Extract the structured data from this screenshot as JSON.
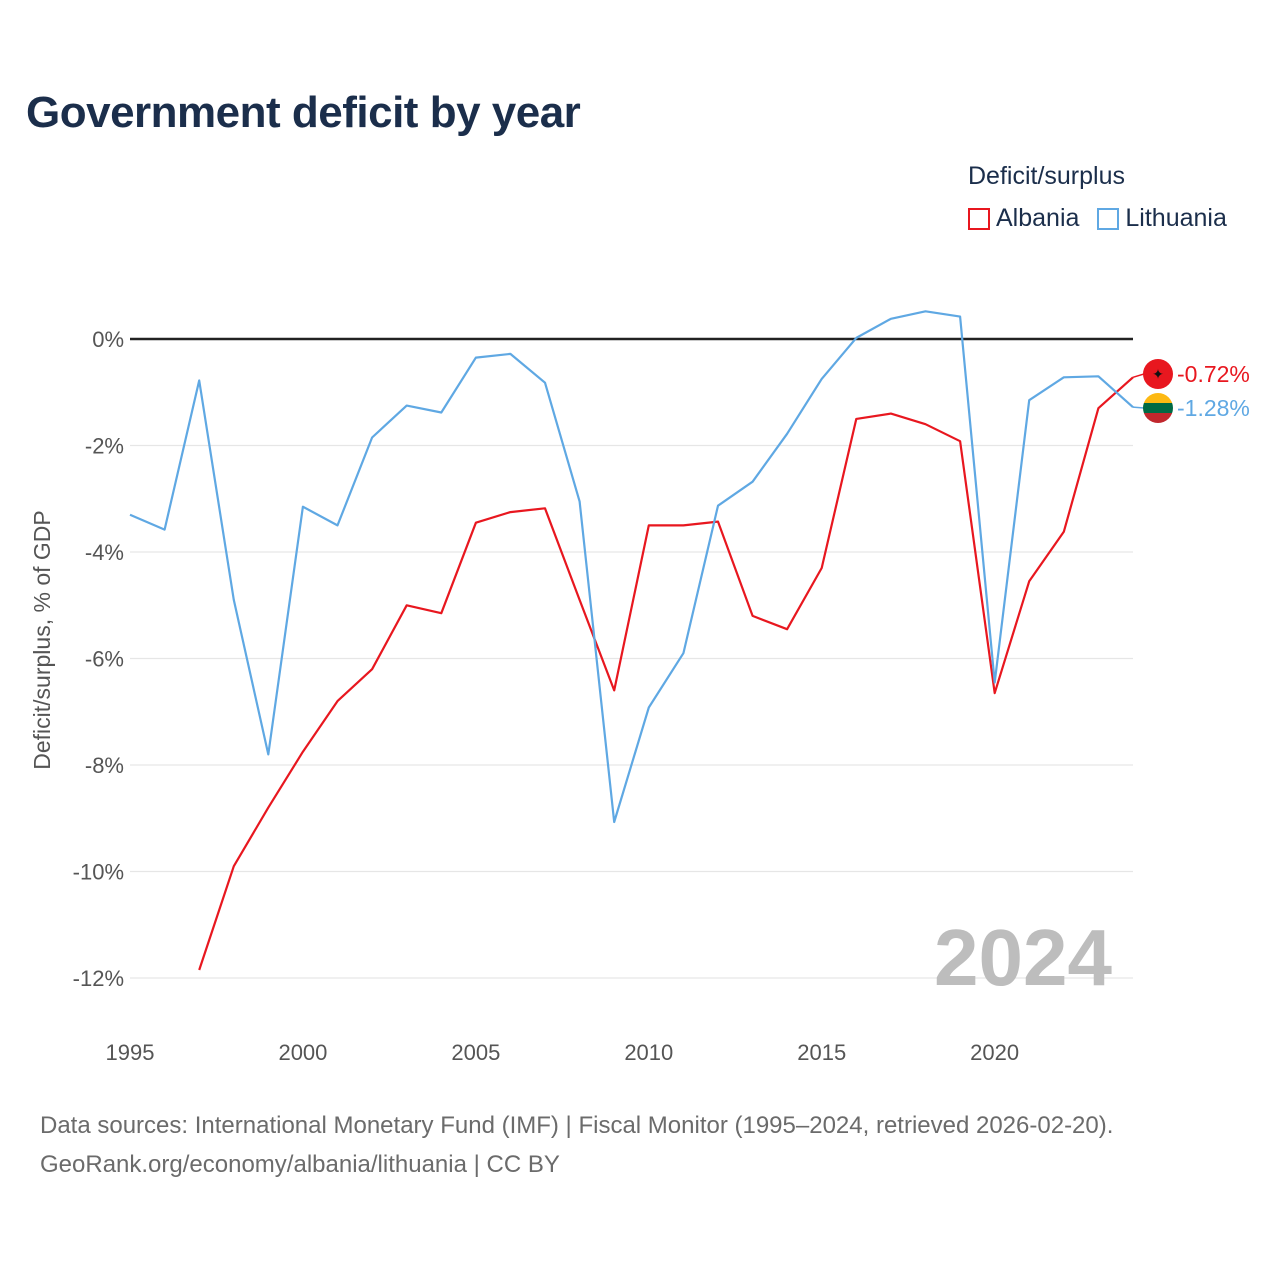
{
  "title": "Government deficit by year",
  "legend": {
    "title": "Deficit/surplus",
    "items": [
      {
        "label": "Albania",
        "color": "#e8171f"
      },
      {
        "label": "Lithuania",
        "color": "#5fa8e3"
      }
    ]
  },
  "highlight_year": "2024",
  "footer": {
    "line1": "Data sources: International Monetary Fund (IMF) | Fiscal Monitor (1995–2024, retrieved 2026-02-20).",
    "line2": "GeoRank.org/economy/albania/lithuania | CC BY"
  },
  "chart_data": {
    "type": "line",
    "title": "Government deficit by year",
    "xlabel": "",
    "ylabel": "Deficit/surplus, % of GDP",
    "xlim": [
      1995,
      2024
    ],
    "ylim": [
      -12.5,
      0.6
    ],
    "x_ticks": [
      1995,
      2000,
      2005,
      2010,
      2015,
      2020
    ],
    "x_tick_labels": [
      "1995",
      "2000",
      "2005",
      "2010",
      "2015",
      "2020"
    ],
    "y_ticks": [
      0,
      -2,
      -4,
      -6,
      -8,
      -10,
      -12
    ],
    "y_tick_labels": [
      "0%",
      "-2%",
      "-4%",
      "-6%",
      "-8%",
      "-10%",
      "-12%"
    ],
    "grid": true,
    "legend_position": "top-right",
    "series": [
      {
        "name": "Albania",
        "color": "#e8171f",
        "end_label": "-0.72%",
        "points": [
          [
            1997,
            -11.85
          ],
          [
            1998,
            -9.9
          ],
          [
            1999,
            -8.8
          ],
          [
            2000,
            -7.75
          ],
          [
            2001,
            -6.8
          ],
          [
            2002,
            -6.2
          ],
          [
            2003,
            -5.0
          ],
          [
            2004,
            -5.15
          ],
          [
            2005,
            -3.45
          ],
          [
            2006,
            -3.25
          ],
          [
            2007,
            -3.18
          ],
          [
            2008,
            -4.9
          ],
          [
            2009,
            -6.6
          ],
          [
            2010,
            -3.5
          ],
          [
            2011,
            -3.5
          ],
          [
            2012,
            -3.43
          ],
          [
            2013,
            -5.2
          ],
          [
            2014,
            -5.45
          ],
          [
            2015,
            -4.3
          ],
          [
            2016,
            -1.5
          ],
          [
            2017,
            -1.4
          ],
          [
            2018,
            -1.6
          ],
          [
            2019,
            -1.92
          ],
          [
            2020,
            -6.65
          ],
          [
            2021,
            -4.55
          ],
          [
            2022,
            -3.62
          ],
          [
            2023,
            -1.3
          ],
          [
            2024,
            -0.72
          ]
        ]
      },
      {
        "name": "Lithuania",
        "color": "#5fa8e3",
        "end_label": "-1.28%",
        "points": [
          [
            1995,
            -3.3
          ],
          [
            1996,
            -3.58
          ],
          [
            1997,
            -0.78
          ],
          [
            1998,
            -4.9
          ],
          [
            1999,
            -7.8
          ],
          [
            2000,
            -3.15
          ],
          [
            2001,
            -3.5
          ],
          [
            2002,
            -1.85
          ],
          [
            2003,
            -1.25
          ],
          [
            2004,
            -1.38
          ],
          [
            2005,
            -0.35
          ],
          [
            2006,
            -0.28
          ],
          [
            2007,
            -0.82
          ],
          [
            2008,
            -3.05
          ],
          [
            2009,
            -9.07
          ],
          [
            2010,
            -6.92
          ],
          [
            2011,
            -5.9
          ],
          [
            2012,
            -3.13
          ],
          [
            2013,
            -2.68
          ],
          [
            2014,
            -1.78
          ],
          [
            2015,
            -0.75
          ],
          [
            2016,
            0.02
          ],
          [
            2017,
            0.38
          ],
          [
            2018,
            0.52
          ],
          [
            2019,
            0.42
          ],
          [
            2020,
            -6.45
          ],
          [
            2021,
            -1.15
          ],
          [
            2022,
            -0.72
          ],
          [
            2023,
            -0.7
          ],
          [
            2024,
            -1.28
          ]
        ]
      }
    ]
  }
}
